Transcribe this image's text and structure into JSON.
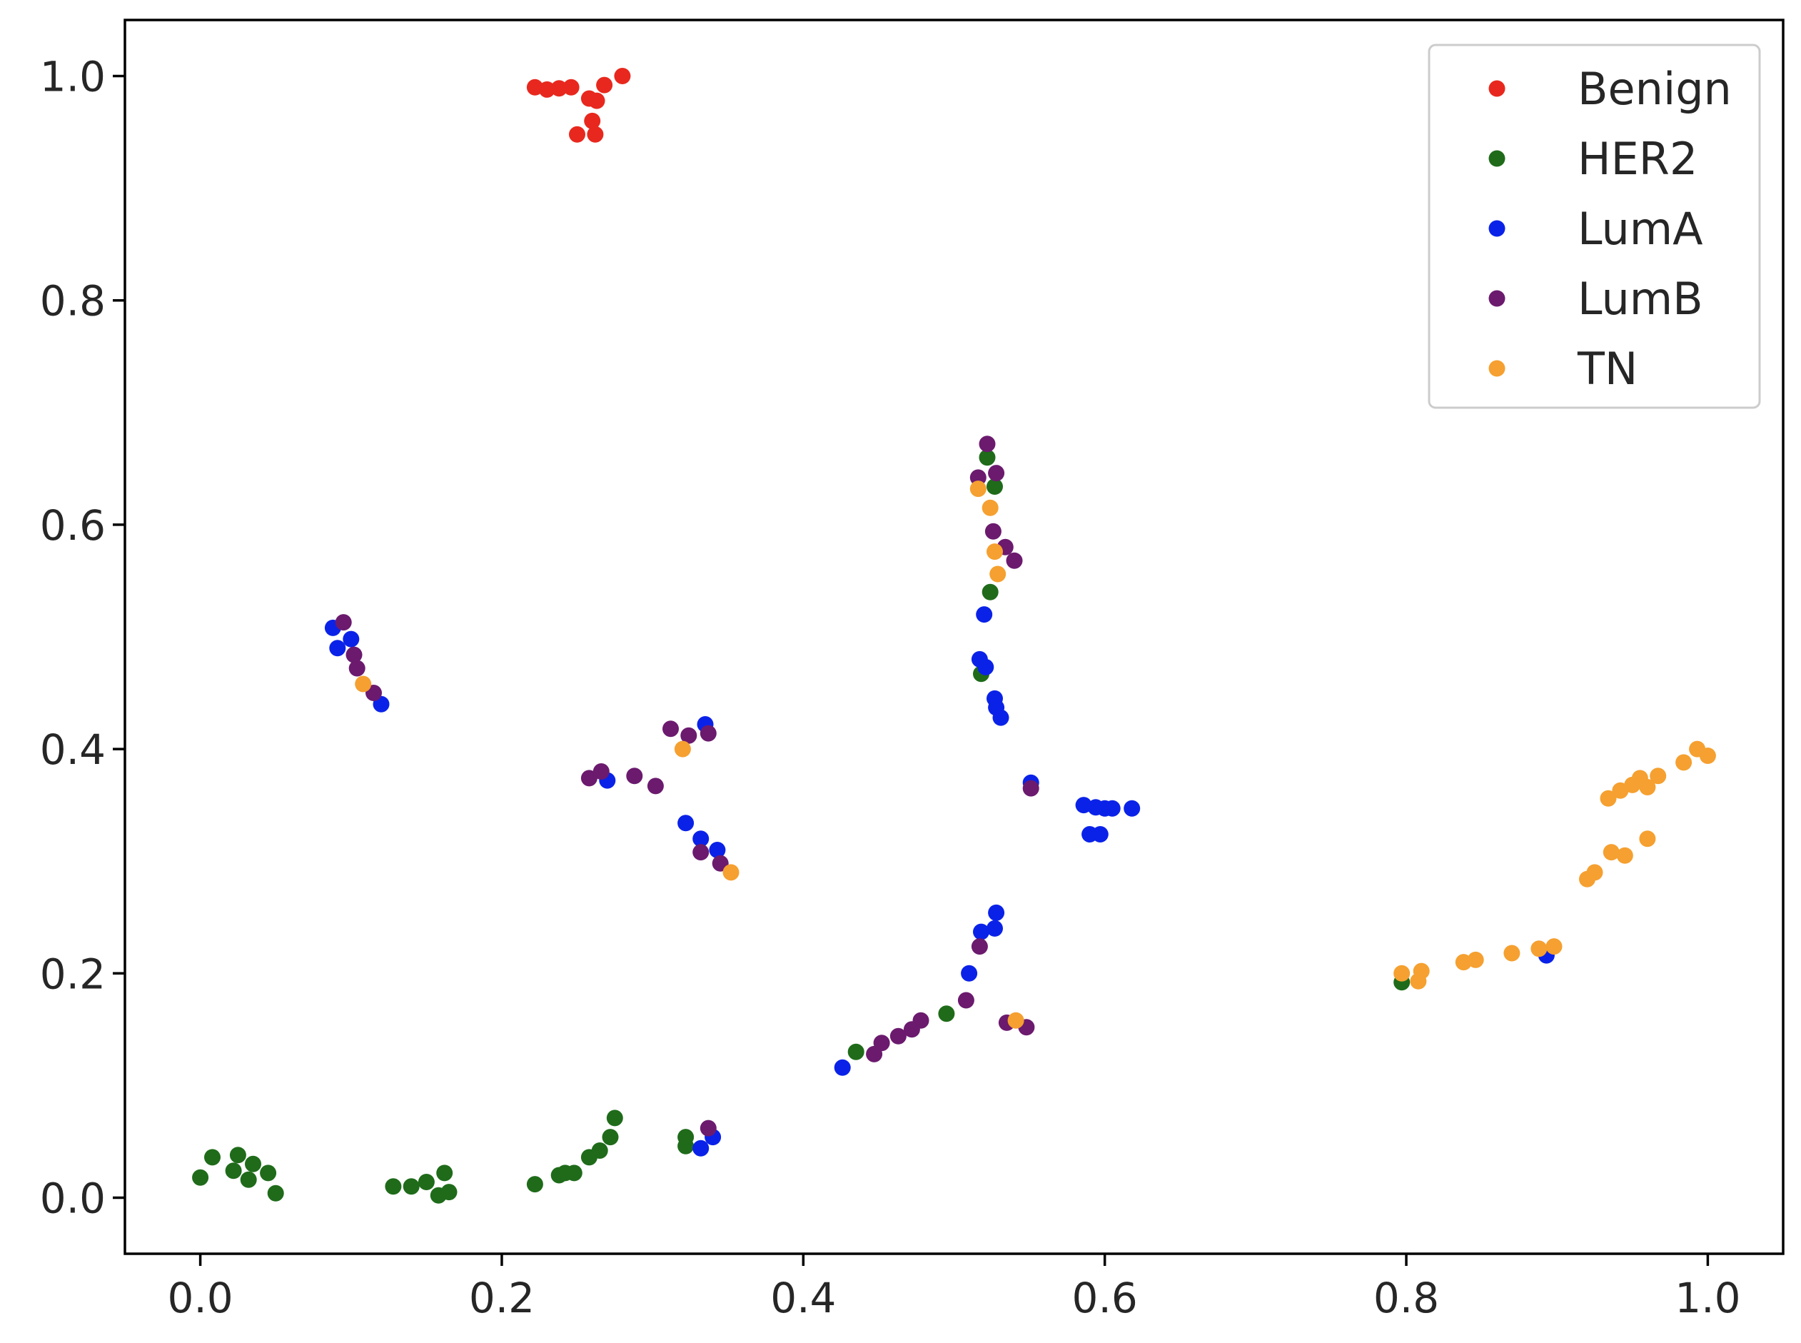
{
  "chart_data": {
    "type": "scatter",
    "title": "",
    "xlabel": "",
    "ylabel": "",
    "xlim": [
      -0.05,
      1.05
    ],
    "ylim": [
      -0.05,
      1.05
    ],
    "grid": false,
    "legend_position": "top-right",
    "x_ticks": [
      {
        "value": 0.0,
        "label": "0.0"
      },
      {
        "value": 0.2,
        "label": "0.2"
      },
      {
        "value": 0.4,
        "label": "0.4"
      },
      {
        "value": 0.6,
        "label": "0.6"
      },
      {
        "value": 0.8,
        "label": "0.8"
      },
      {
        "value": 1.0,
        "label": "1.0"
      }
    ],
    "y_ticks": [
      {
        "value": 0.0,
        "label": "0.0"
      },
      {
        "value": 0.2,
        "label": "0.2"
      },
      {
        "value": 0.4,
        "label": "0.4"
      },
      {
        "value": 0.6,
        "label": "0.6"
      },
      {
        "value": 0.8,
        "label": "0.8"
      },
      {
        "value": 1.0,
        "label": "1.0"
      }
    ],
    "series": [
      {
        "name": "Benign",
        "color": "#e8281e",
        "points": [
          [
            0.222,
            0.99
          ],
          [
            0.23,
            0.988
          ],
          [
            0.238,
            0.989
          ],
          [
            0.246,
            0.99
          ],
          [
            0.25,
            0.948
          ],
          [
            0.258,
            0.98
          ],
          [
            0.26,
            0.96
          ],
          [
            0.262,
            0.948
          ],
          [
            0.263,
            0.978
          ],
          [
            0.268,
            0.992
          ],
          [
            0.28,
            1.0
          ]
        ]
      },
      {
        "name": "HER2",
        "color": "#1f6b1a",
        "points": [
          [
            0.0,
            0.018
          ],
          [
            0.008,
            0.036
          ],
          [
            0.022,
            0.024
          ],
          [
            0.025,
            0.038
          ],
          [
            0.032,
            0.016
          ],
          [
            0.035,
            0.03
          ],
          [
            0.045,
            0.022
          ],
          [
            0.05,
            0.004
          ],
          [
            0.128,
            0.01
          ],
          [
            0.14,
            0.01
          ],
          [
            0.15,
            0.014
          ],
          [
            0.158,
            0.002
          ],
          [
            0.162,
            0.022
          ],
          [
            0.165,
            0.005
          ],
          [
            0.222,
            0.012
          ],
          [
            0.238,
            0.02
          ],
          [
            0.242,
            0.022
          ],
          [
            0.248,
            0.022
          ],
          [
            0.258,
            0.036
          ],
          [
            0.265,
            0.042
          ],
          [
            0.272,
            0.054
          ],
          [
            0.275,
            0.071
          ],
          [
            0.322,
            0.046
          ],
          [
            0.322,
            0.054
          ],
          [
            0.435,
            0.13
          ],
          [
            0.495,
            0.164
          ],
          [
            0.518,
            0.467
          ],
          [
            0.522,
            0.66
          ],
          [
            0.524,
            0.54
          ],
          [
            0.527,
            0.634
          ],
          [
            0.797,
            0.192
          ]
        ]
      },
      {
        "name": "LumA",
        "color": "#0a22e8",
        "points": [
          [
            0.088,
            0.508
          ],
          [
            0.091,
            0.49
          ],
          [
            0.1,
            0.498
          ],
          [
            0.12,
            0.44
          ],
          [
            0.27,
            0.372
          ],
          [
            0.322,
            0.334
          ],
          [
            0.332,
            0.32
          ],
          [
            0.335,
            0.422
          ],
          [
            0.343,
            0.31
          ],
          [
            0.332,
            0.044
          ],
          [
            0.34,
            0.054
          ],
          [
            0.426,
            0.116
          ],
          [
            0.51,
            0.2
          ],
          [
            0.517,
            0.48
          ],
          [
            0.518,
            0.237
          ],
          [
            0.52,
            0.52
          ],
          [
            0.521,
            0.473
          ],
          [
            0.527,
            0.445
          ],
          [
            0.528,
            0.437
          ],
          [
            0.527,
            0.24
          ],
          [
            0.528,
            0.254
          ],
          [
            0.531,
            0.428
          ],
          [
            0.551,
            0.37
          ],
          [
            0.586,
            0.35
          ],
          [
            0.59,
            0.324
          ],
          [
            0.594,
            0.348
          ],
          [
            0.597,
            0.324
          ],
          [
            0.6,
            0.347
          ],
          [
            0.605,
            0.347
          ],
          [
            0.618,
            0.347
          ],
          [
            0.893,
            0.216
          ]
        ]
      },
      {
        "name": "LumB",
        "color": "#6b1a6e",
        "points": [
          [
            0.095,
            0.513
          ],
          [
            0.102,
            0.484
          ],
          [
            0.104,
            0.472
          ],
          [
            0.115,
            0.45
          ],
          [
            0.258,
            0.374
          ],
          [
            0.266,
            0.38
          ],
          [
            0.288,
            0.376
          ],
          [
            0.302,
            0.367
          ],
          [
            0.312,
            0.418
          ],
          [
            0.324,
            0.412
          ],
          [
            0.332,
            0.308
          ],
          [
            0.337,
            0.414
          ],
          [
            0.345,
            0.298
          ],
          [
            0.337,
            0.062
          ],
          [
            0.447,
            0.128
          ],
          [
            0.452,
            0.138
          ],
          [
            0.463,
            0.144
          ],
          [
            0.472,
            0.15
          ],
          [
            0.478,
            0.158
          ],
          [
            0.508,
            0.176
          ],
          [
            0.517,
            0.224
          ],
          [
            0.516,
            0.642
          ],
          [
            0.522,
            0.672
          ],
          [
            0.526,
            0.594
          ],
          [
            0.528,
            0.646
          ],
          [
            0.534,
            0.58
          ],
          [
            0.54,
            0.568
          ],
          [
            0.535,
            0.156
          ],
          [
            0.548,
            0.152
          ],
          [
            0.551,
            0.365
          ]
        ]
      },
      {
        "name": "TN",
        "color": "#f5a030",
        "points": [
          [
            0.108,
            0.458
          ],
          [
            0.32,
            0.4
          ],
          [
            0.352,
            0.29
          ],
          [
            0.516,
            0.632
          ],
          [
            0.524,
            0.615
          ],
          [
            0.527,
            0.576
          ],
          [
            0.529,
            0.556
          ],
          [
            0.541,
            0.158
          ],
          [
            0.797,
            0.2
          ],
          [
            0.808,
            0.193
          ],
          [
            0.81,
            0.202
          ],
          [
            0.838,
            0.21
          ],
          [
            0.846,
            0.212
          ],
          [
            0.87,
            0.218
          ],
          [
            0.888,
            0.222
          ],
          [
            0.898,
            0.224
          ],
          [
            0.92,
            0.284
          ],
          [
            0.925,
            0.29
          ],
          [
            0.934,
            0.356
          ],
          [
            0.936,
            0.308
          ],
          [
            0.942,
            0.363
          ],
          [
            0.945,
            0.305
          ],
          [
            0.95,
            0.368
          ],
          [
            0.955,
            0.374
          ],
          [
            0.96,
            0.32
          ],
          [
            0.96,
            0.366
          ],
          [
            0.967,
            0.376
          ],
          [
            0.984,
            0.388
          ],
          [
            0.993,
            0.4
          ],
          [
            1.0,
            0.394
          ]
        ]
      }
    ]
  }
}
